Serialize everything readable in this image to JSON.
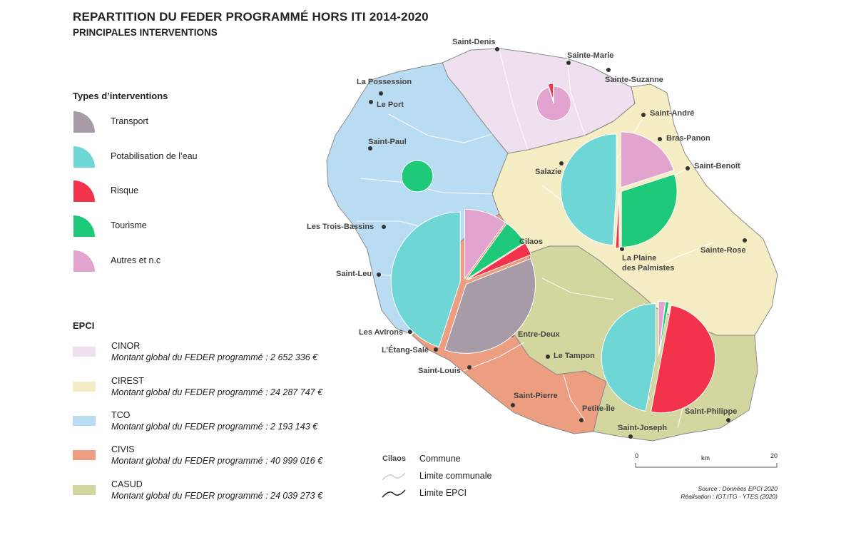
{
  "title": "REPARTITION DU FEDER PROGRAMMÉ HORS ITI 2014-2020",
  "subtitle": "PRINCIPALES INTERVENTIONS",
  "types": {
    "heading": "Types d’interventions",
    "items": [
      {
        "label": "Transport",
        "color": "#a69ba6"
      },
      {
        "label": "Potabilisation de l’eau",
        "color": "#6ed6d4"
      },
      {
        "label": "Risque",
        "color": "#f2334b"
      },
      {
        "label": "Tourisme",
        "color": "#1ec97a"
      },
      {
        "label": "Autres et n.c",
        "color": "#e3a3cf"
      }
    ]
  },
  "epci": {
    "heading": "EPCI",
    "prefix": "Montant global du FEDER programmé : ",
    "items": [
      {
        "name": "CINOR",
        "amount": "2 652 336 €",
        "color": "#efe0f0"
      },
      {
        "name": "CIREST",
        "amount": "24 287 747 €",
        "color": "#f5edc3"
      },
      {
        "name": "TCO",
        "amount": "2 193 143 €",
        "color": "#b9dcf3"
      },
      {
        "name": "CIVIS",
        "amount": "40 999 016 €",
        "color": "#ed9d80"
      },
      {
        "name": "CASUD",
        "amount": "24 039 273 €",
        "color": "#d3d69e"
      }
    ]
  },
  "map_legend": {
    "commune_sample": "Cilaos",
    "commune_label": "Commune",
    "limite_communale": "Limite communale",
    "limite_epci": "Limite EPCI"
  },
  "scale": {
    "start": "0",
    "unit": "km",
    "end": "20"
  },
  "source": {
    "line1": "Source : Données EPCI 2020",
    "line2": "Réalisation : IGT.ITG - YTES (2020)"
  },
  "cities": [
    "Saint-Denis",
    "Sainte-Marie",
    "Sainte-Suzanne",
    "La Possession",
    "Le Port",
    "Saint-André",
    "Bras-Panon",
    "Saint-Benoît",
    "Saint-Paul",
    "Salazie",
    "Cilaos",
    "Les Trois-Bassins",
    "Sainte-Rose",
    "La Plaine",
    "des Palmistes",
    "Saint-Leu",
    "Les Avirons",
    "Entre-Deux",
    "L’Étang-Salé",
    "Le Tampon",
    "Saint-Louis",
    "Saint-Pierre",
    "Petite-Île",
    "Saint-Philippe",
    "Saint-Joseph"
  ],
  "pies": [
    {
      "epci": "CINOR",
      "shares": {
        "Risque": 0.05,
        "Autres et n.c": 0.95
      }
    },
    {
      "epci": "TCO",
      "shares": {
        "Tourisme": 1.0
      }
    },
    {
      "epci": "CIREST",
      "shares": {
        "Autres et n.c": 0.2,
        "Tourisme": 0.3,
        "Risque": 0.01,
        "Potabilisation de l’eau": 0.49
      }
    },
    {
      "epci": "CIVIS",
      "shares": {
        "Autres et n.c": 0.1,
        "Tourisme": 0.06,
        "Risque": 0.03,
        "Transport": 0.36,
        "Potabilisation de l’eau": 0.45
      }
    },
    {
      "epci": "CASUD",
      "shares": {
        "Autres et n.c": 0.02,
        "Tourisme": 0.01,
        "Risque": 0.5,
        "Potabilisation de l’eau": 0.47
      }
    }
  ]
}
